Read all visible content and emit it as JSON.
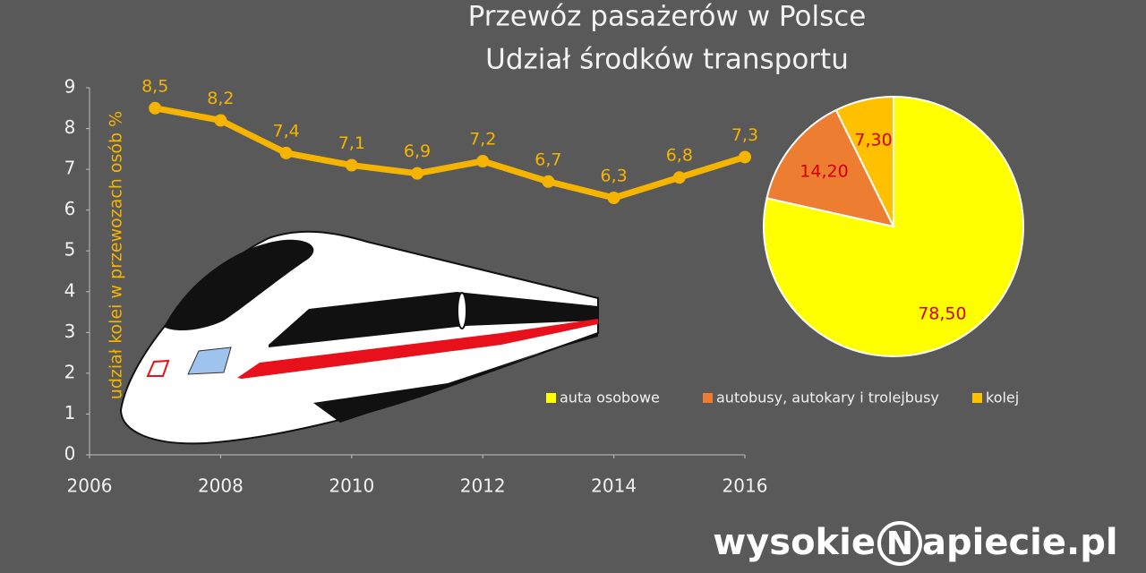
{
  "title": "Przewóz pasażerów w Polsce",
  "subtitle": "Udział środków transportu",
  "watermark": {
    "left": "wysokie",
    "mark": "N",
    "right": "apiecie.pl"
  },
  "chart_data": [
    {
      "type": "line",
      "y_label": "udział kolei w przewozach osób %",
      "x": [
        2007,
        2008,
        2009,
        2010,
        2011,
        2012,
        2013,
        2014,
        2015,
        2016
      ],
      "series": [
        {
          "name": "kolej",
          "color": "#f5b400",
          "values": [
            8.5,
            8.2,
            7.4,
            7.1,
            6.9,
            7.2,
            6.7,
            6.3,
            6.8,
            7.3
          ],
          "value_labels": [
            "8,5",
            "8,2",
            "7,4",
            "7,1",
            "6,9",
            "7,2",
            "6,7",
            "6,3",
            "6,8",
            "7,3"
          ]
        }
      ],
      "xlim": [
        2006,
        2016
      ],
      "xticks": [
        2006,
        2008,
        2010,
        2012,
        2014,
        2016
      ],
      "ylim": [
        0,
        9
      ],
      "yticks": [
        0,
        1,
        2,
        3,
        4,
        5,
        6,
        7,
        8,
        9
      ]
    },
    {
      "type": "pie",
      "center_label": "%",
      "categories": [
        "auta osobowe",
        "autobusy, autokary i trolejbusy",
        "kolej"
      ],
      "values": [
        78.5,
        14.2,
        7.3
      ],
      "value_labels": [
        "78,50",
        "14,20",
        "7,30"
      ],
      "colors": [
        "#ffff00",
        "#ed7d31",
        "#ffc000"
      ],
      "legend": "bottom"
    }
  ]
}
